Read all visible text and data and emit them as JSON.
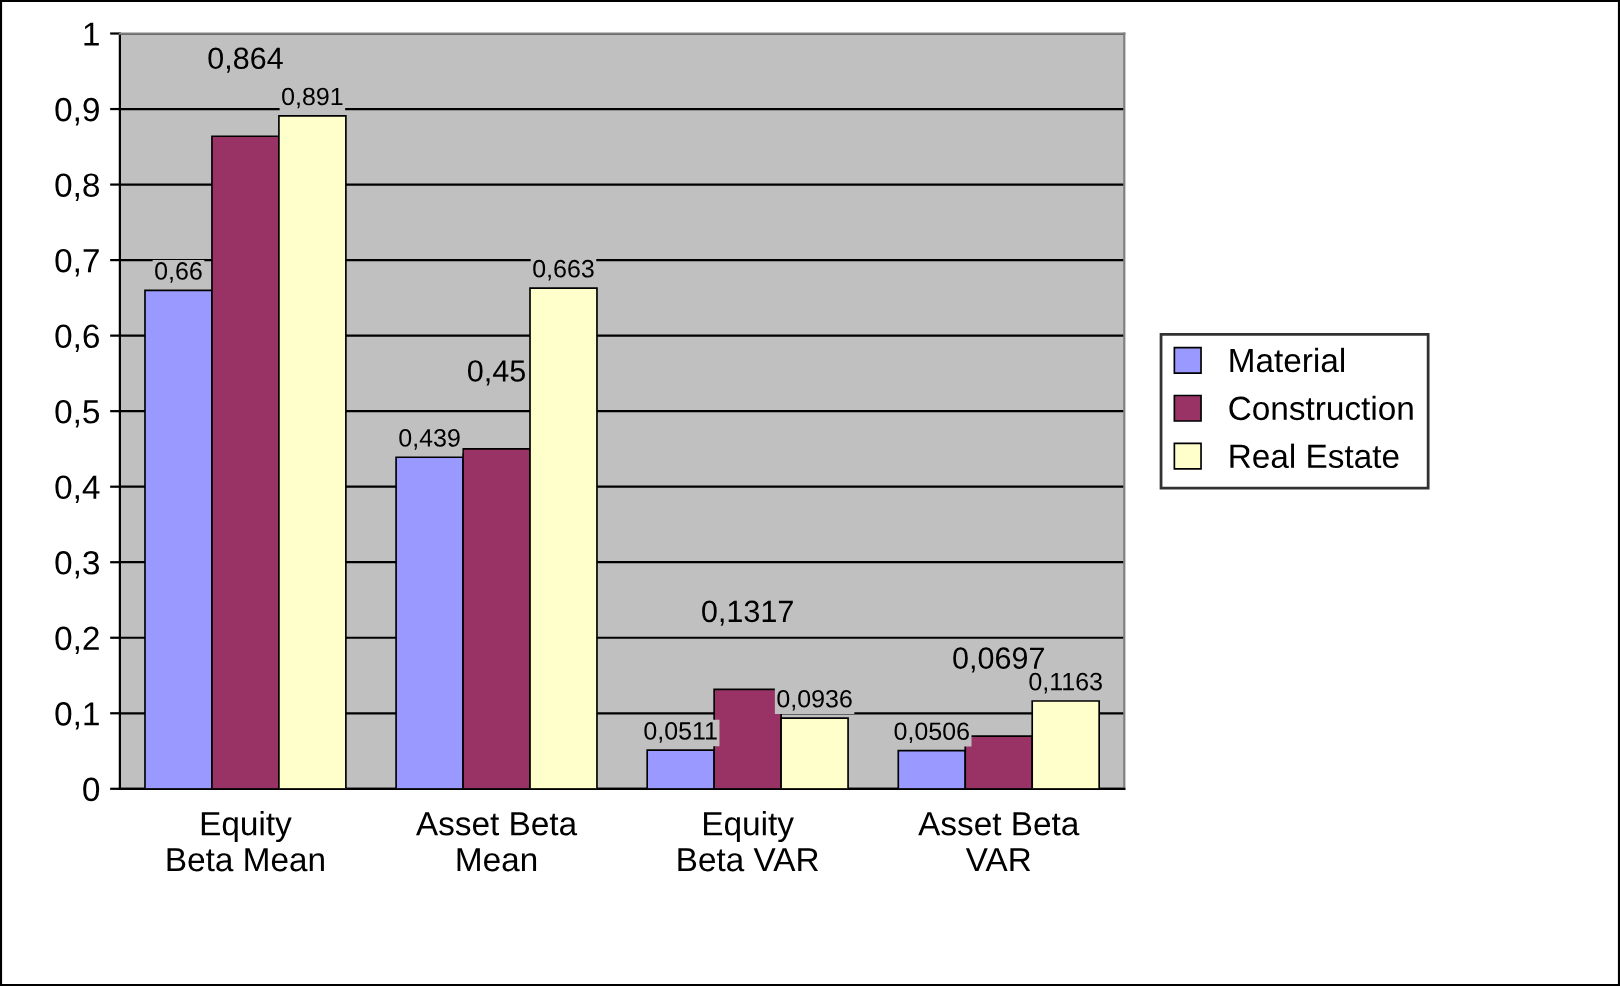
{
  "chart_data": {
    "type": "bar",
    "categories": [
      "Equity\nBeta Mean",
      "Asset Beta\nMean",
      "Equity\nBeta VAR",
      "Asset Beta\nVAR"
    ],
    "series": [
      {
        "name": "Material",
        "color": "#9999ff",
        "values": [
          0.66,
          0.439,
          0.0511,
          0.0506
        ],
        "value_labels": [
          "0,66",
          "0,439",
          "0,0511",
          "0,0506"
        ]
      },
      {
        "name": "Construction",
        "color": "#993366",
        "values": [
          0.864,
          0.45,
          0.1317,
          0.0697
        ],
        "value_labels": [
          "0,864",
          "0,45",
          "0,1317",
          "0,0697"
        ]
      },
      {
        "name": "Real Estate",
        "color": "#ffffcc",
        "values": [
          0.891,
          0.663,
          0.0936,
          0.1163
        ],
        "value_labels": [
          "0,891",
          "0,663",
          "0,0936",
          "0,1163"
        ]
      }
    ],
    "ylim": [
      0,
      1
    ],
    "yticks": [
      0,
      {
        "value": 0.1,
        "label": "0,1"
      },
      {
        "value": 0.2,
        "label": "0,2"
      },
      {
        "value": 0.3,
        "label": "0,3"
      },
      {
        "value": 0.4,
        "label": "0,4"
      },
      {
        "value": 0.5,
        "label": "0,5"
      },
      {
        "value": 0.6,
        "label": "0,6"
      },
      {
        "value": 0.7,
        "label": "0,7"
      },
      {
        "value": 0.8,
        "label": "0,8"
      },
      {
        "value": 0.9,
        "label": "0,9"
      },
      1
    ],
    "grid": "y",
    "legend": "right"
  }
}
